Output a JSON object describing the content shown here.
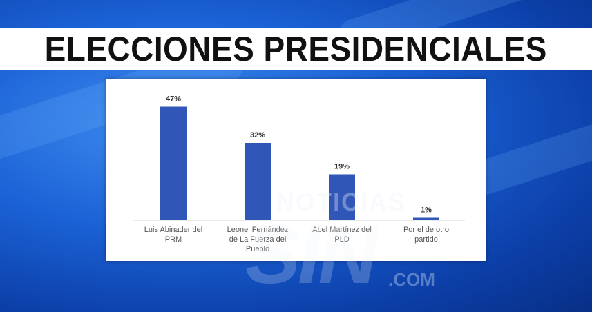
{
  "header": {
    "title": "ELECCIONES PRESIDENCIALES"
  },
  "watermark": {
    "line1": "NOTICIAS",
    "line2": "SIN",
    "line3": ".COM"
  },
  "colors": {
    "bar": "#3057b8",
    "background": "#1b62d6"
  },
  "chart_data": {
    "type": "bar",
    "title": "",
    "xlabel": "",
    "ylabel": "",
    "ylim": [
      0,
      50
    ],
    "grid": false,
    "categories": [
      [
        "Luis Abinader del",
        "PRM"
      ],
      [
        "Leonel Fernández",
        "de La Fuerza del",
        "Pueblo"
      ],
      [
        "Abel Martínez del",
        "PLD"
      ],
      [
        "Por el de otro",
        "partido"
      ]
    ],
    "values": [
      47,
      32,
      19,
      1
    ],
    "data_labels": [
      "47%",
      "32%",
      "19%",
      "1%"
    ]
  }
}
